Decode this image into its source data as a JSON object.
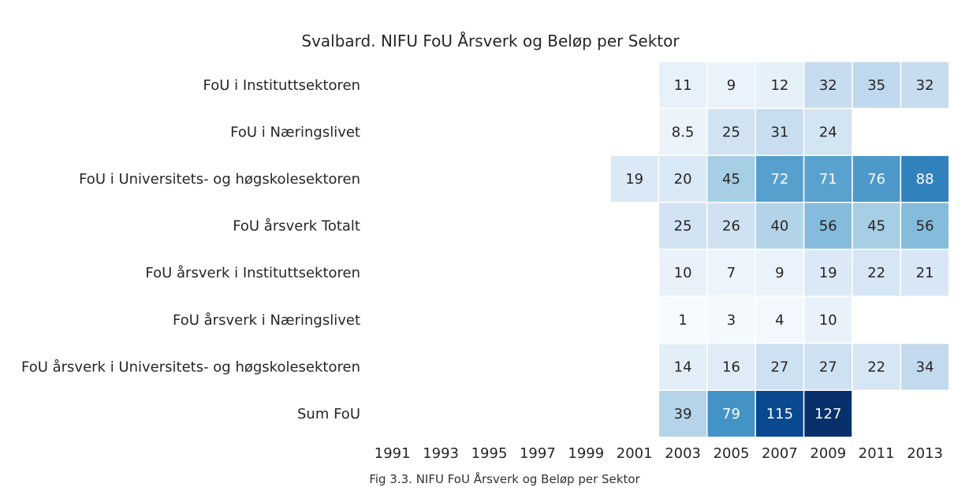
{
  "chart_data": {
    "type": "heatmap",
    "title": "Svalbard. NIFU FoU Årsverk og Beløp per Sektor",
    "caption": "Fig 3.3. NIFU FoU Årsverk og Beløp per Sektor",
    "x_labels": [
      "1991",
      "1993",
      "1995",
      "1997",
      "1999",
      "2001",
      "2003",
      "2005",
      "2007",
      "2009",
      "2011",
      "2013"
    ],
    "y_labels": [
      "FoU i Instituttsektoren",
      "FoU i Næringslivet",
      "FoU i Universitets- og høgskolesektoren",
      "FoU årsverk Totalt",
      "FoU årsverk i Instituttsektoren",
      "FoU årsverk i Næringslivet",
      "FoU årsverk i Universitets- og høgskolesektoren",
      "Sum FoU"
    ],
    "values": [
      [
        null,
        null,
        null,
        null,
        null,
        null,
        11,
        9,
        12,
        32,
        35,
        32
      ],
      [
        null,
        null,
        null,
        null,
        null,
        null,
        8.5,
        25,
        31,
        24,
        null,
        null
      ],
      [
        null,
        null,
        null,
        null,
        null,
        19,
        20,
        45,
        72,
        71,
        76,
        88
      ],
      [
        null,
        null,
        null,
        null,
        null,
        null,
        25,
        26,
        40,
        56,
        45,
        56
      ],
      [
        null,
        null,
        null,
        null,
        null,
        null,
        10,
        7,
        9,
        19,
        22,
        21
      ],
      [
        null,
        null,
        null,
        null,
        null,
        null,
        1,
        3,
        4,
        10,
        null,
        null
      ],
      [
        null,
        null,
        null,
        null,
        null,
        null,
        14,
        16,
        27,
        27,
        22,
        34
      ],
      [
        null,
        null,
        null,
        null,
        null,
        null,
        39,
        79,
        115,
        127,
        null,
        null
      ]
    ],
    "colormap": "Blues",
    "vmin": 1,
    "vmax": 127,
    "annotations": true,
    "colorbar": false
  }
}
